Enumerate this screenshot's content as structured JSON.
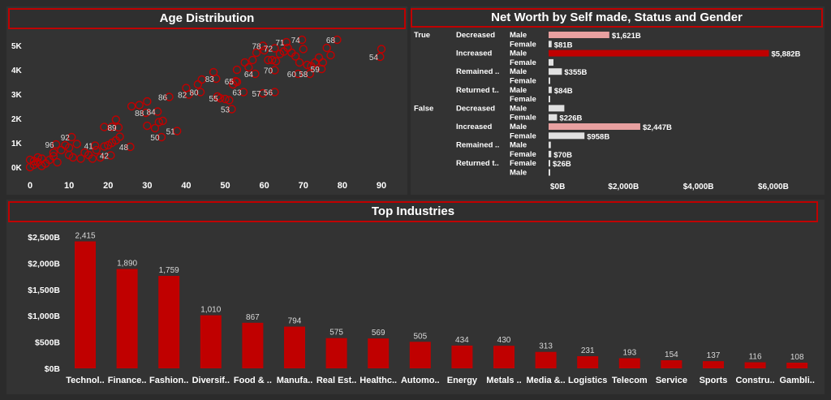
{
  "colors": {
    "accent": "#c00000",
    "bar": "#c00000",
    "light_bar": "#e0e0e0",
    "pink_bar": "#e8a0a0",
    "background": "#2b2b2b",
    "panel": "#333333"
  },
  "panels": {
    "age": {
      "title": "Age Distribution"
    },
    "networth": {
      "title": "Net Worth by Self made, Status and Gender"
    },
    "industries": {
      "title": "Top Industries"
    }
  },
  "chart_data": [
    {
      "type": "scatter",
      "title": "Age Distribution",
      "xlim": [
        0,
        90
      ],
      "ylim": [
        0,
        5500
      ],
      "x_ticks": [
        0,
        10,
        20,
        30,
        40,
        50,
        60,
        70,
        80,
        90
      ],
      "y_ticks": [
        0,
        1000,
        2000,
        3000,
        4000,
        5000
      ],
      "y_tick_labels": [
        "0K",
        "1K",
        "2K",
        "3K",
        "4K",
        "5K"
      ],
      "labeled_points": [
        {
          "x": 9,
          "y": 1100,
          "label": "92"
        },
        {
          "x": 5,
          "y": 800,
          "label": "96"
        },
        {
          "x": 15,
          "y": 750,
          "label": "41"
        },
        {
          "x": 21,
          "y": 1500,
          "label": "89"
        },
        {
          "x": 19,
          "y": 350,
          "label": "42"
        },
        {
          "x": 24,
          "y": 700,
          "label": "48"
        },
        {
          "x": 32,
          "y": 1100,
          "label": "50"
        },
        {
          "x": 36,
          "y": 1350,
          "label": "51"
        },
        {
          "x": 28,
          "y": 2100,
          "label": "88"
        },
        {
          "x": 31,
          "y": 2150,
          "label": "84"
        },
        {
          "x": 34,
          "y": 2750,
          "label": "86"
        },
        {
          "x": 39,
          "y": 2850,
          "label": "82"
        },
        {
          "x": 42,
          "y": 2950,
          "label": "80"
        },
        {
          "x": 46,
          "y": 3500,
          "label": "83"
        },
        {
          "x": 51,
          "y": 3400,
          "label": "65"
        },
        {
          "x": 47,
          "y": 2700,
          "label": "55"
        },
        {
          "x": 50,
          "y": 2250,
          "label": "53"
        },
        {
          "x": 53,
          "y": 2950,
          "label": "63"
        },
        {
          "x": 56,
          "y": 3700,
          "label": "64"
        },
        {
          "x": 58,
          "y": 2900,
          "label": "57"
        },
        {
          "x": 61,
          "y": 2950,
          "label": "56"
        },
        {
          "x": 61,
          "y": 3850,
          "label": "70"
        },
        {
          "x": 58,
          "y": 4850,
          "label": "78"
        },
        {
          "x": 61,
          "y": 4750,
          "label": "72"
        },
        {
          "x": 64,
          "y": 5000,
          "label": "71"
        },
        {
          "x": 68,
          "y": 5100,
          "label": "74"
        },
        {
          "x": 77,
          "y": 5100,
          "label": "68"
        },
        {
          "x": 67,
          "y": 3700,
          "label": "60"
        },
        {
          "x": 70,
          "y": 3700,
          "label": "58"
        },
        {
          "x": 73,
          "y": 3900,
          "label": "59"
        },
        {
          "x": 88,
          "y": 4400,
          "label": "54"
        }
      ],
      "points": [
        [
          0,
          0
        ],
        [
          1,
          100
        ],
        [
          0,
          300
        ],
        [
          2,
          200
        ],
        [
          3,
          350
        ],
        [
          4,
          150
        ],
        [
          2,
          400
        ],
        [
          1,
          250
        ],
        [
          3,
          50
        ],
        [
          5,
          300
        ],
        [
          6,
          450
        ],
        [
          7,
          200
        ],
        [
          6,
          600
        ],
        [
          8,
          700
        ],
        [
          9,
          900
        ],
        [
          10,
          500
        ],
        [
          11,
          400
        ],
        [
          12,
          950
        ],
        [
          10,
          800
        ],
        [
          13,
          350
        ],
        [
          14,
          600
        ],
        [
          15,
          500
        ],
        [
          16,
          350
        ],
        [
          17,
          700
        ],
        [
          18,
          400
        ],
        [
          19,
          850
        ],
        [
          20,
          900
        ],
        [
          21,
          1000
        ],
        [
          22,
          1100
        ],
        [
          23,
          1250
        ],
        [
          19,
          1650
        ],
        [
          21,
          1650
        ],
        [
          22,
          1950
        ],
        [
          26,
          2500
        ],
        [
          28,
          2550
        ],
        [
          30,
          2700
        ],
        [
          30,
          1700
        ],
        [
          32,
          1600
        ],
        [
          33,
          1850
        ],
        [
          34,
          1900
        ],
        [
          40,
          3250
        ],
        [
          43,
          3400
        ],
        [
          44,
          3600
        ],
        [
          47,
          3900
        ],
        [
          48,
          2900
        ],
        [
          50,
          2800
        ],
        [
          51,
          2750
        ],
        [
          52,
          3400
        ],
        [
          53,
          3500
        ],
        [
          53,
          4000
        ],
        [
          55,
          4300
        ],
        [
          56,
          4100
        ],
        [
          57,
          4400
        ],
        [
          58,
          4700
        ],
        [
          60,
          4800
        ],
        [
          61,
          4400
        ],
        [
          62,
          4400
        ],
        [
          63,
          4350
        ],
        [
          64,
          4650
        ],
        [
          65,
          4750
        ],
        [
          66,
          4900
        ],
        [
          67,
          4700
        ],
        [
          68,
          4550
        ],
        [
          69,
          4300
        ],
        [
          70,
          4850
        ],
        [
          71,
          4200
        ],
        [
          72,
          4150
        ],
        [
          73,
          4300
        ],
        [
          74,
          4500
        ],
        [
          75,
          4300
        ],
        [
          76,
          4900
        ],
        [
          77,
          4600
        ],
        [
          90,
          4850
        ]
      ]
    },
    {
      "type": "bar",
      "orientation": "horizontal",
      "title": "Net Worth by Self made, Status and Gender",
      "x_ticks": [
        "$0B",
        "$2,000B",
        "$4,000B",
        "$6,000B"
      ],
      "xlim": [
        0,
        6500
      ],
      "groups": [
        {
          "selfmade": "True",
          "status": "Decreased",
          "gender": "Male",
          "value": 1621,
          "label": "$1,621B",
          "color": "pink"
        },
        {
          "selfmade": "True",
          "status": "Decreased",
          "gender": "Female",
          "value": 81,
          "label": "$81B",
          "color": "light"
        },
        {
          "selfmade": "True",
          "status": "Increased",
          "gender": "Male",
          "value": 5882,
          "label": "$5,882B",
          "color": "red"
        },
        {
          "selfmade": "True",
          "status": "Increased",
          "gender": "Female",
          "value": 130,
          "label": "",
          "color": "light"
        },
        {
          "selfmade": "True",
          "status": "Remained ..",
          "gender": "Male",
          "value": 355,
          "label": "$355B",
          "color": "light"
        },
        {
          "selfmade": "True",
          "status": "Remained ..",
          "gender": "Female",
          "value": 0,
          "label": "",
          "color": "light"
        },
        {
          "selfmade": "True",
          "status": "Returned t..",
          "gender": "Male",
          "value": 84,
          "label": "$84B",
          "color": "light"
        },
        {
          "selfmade": "True",
          "status": "Returned t..",
          "gender": "Female",
          "value": 10,
          "label": "",
          "color": "light"
        },
        {
          "selfmade": "False",
          "status": "Decreased",
          "gender": "Male",
          "value": 420,
          "label": "",
          "color": "light"
        },
        {
          "selfmade": "False",
          "status": "Decreased",
          "gender": "Female",
          "value": 226,
          "label": "$226B",
          "color": "light"
        },
        {
          "selfmade": "False",
          "status": "Increased",
          "gender": "Male",
          "value": 2447,
          "label": "$2,447B",
          "color": "pink"
        },
        {
          "selfmade": "False",
          "status": "Increased",
          "gender": "Female",
          "value": 958,
          "label": "$958B",
          "color": "light"
        },
        {
          "selfmade": "False",
          "status": "Remained ..",
          "gender": "Male",
          "value": 60,
          "label": "",
          "color": "light"
        },
        {
          "selfmade": "False",
          "status": "Remained ..",
          "gender": "Female",
          "value": 70,
          "label": "$70B",
          "color": "light"
        },
        {
          "selfmade": "False",
          "status": "Returned t..",
          "gender": "Female",
          "value": 26,
          "label": "$26B",
          "color": "light"
        },
        {
          "selfmade": "False",
          "status": "Returned t..",
          "gender": "Male",
          "value": 10,
          "label": "",
          "color": "light"
        }
      ]
    },
    {
      "type": "bar",
      "title": "Top Industries",
      "categories": [
        "Technol..",
        "Finance..",
        "Fashion..",
        "Diversif..",
        "Food & ..",
        "Manufa..",
        "Real Est..",
        "Healthc..",
        "Automo..",
        "Energy",
        "Metals ..",
        "Media &..",
        "Logistics",
        "Telecom",
        "Service",
        "Sports",
        "Constru..",
        "Gambli.."
      ],
      "values": [
        2415,
        1890,
        1759,
        1010,
        867,
        794,
        575,
        569,
        505,
        434,
        430,
        313,
        231,
        193,
        154,
        137,
        116,
        108
      ],
      "value_labels": [
        "2,415",
        "1,890",
        "1,759",
        "1,010",
        "867",
        "794",
        "575",
        "569",
        "505",
        "434",
        "430",
        "313",
        "231",
        "193",
        "154",
        "137",
        "116",
        "108"
      ],
      "y_ticks": [
        0,
        500,
        1000,
        1500,
        2000,
        2500
      ],
      "y_tick_labels": [
        "$0B",
        "$500B",
        "$1,000B",
        "$1,500B",
        "$2,000B",
        "$2,500B"
      ],
      "ylim": [
        0,
        2650
      ]
    }
  ]
}
